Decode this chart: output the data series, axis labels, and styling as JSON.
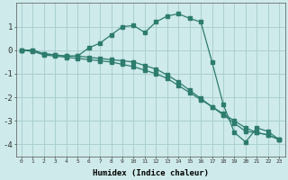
{
  "xlabel": "Humidex (Indice chaleur)",
  "background_color": "#ceeaea",
  "grid_color": "#aacfcf",
  "line_color": "#2d7c6e",
  "xlim": [
    -0.5,
    23.5
  ],
  "ylim": [
    -4.5,
    2.0
  ],
  "yticks": [
    -4,
    -3,
    -2,
    -1,
    0,
    1
  ],
  "xticks": [
    0,
    1,
    2,
    3,
    4,
    5,
    6,
    7,
    8,
    9,
    10,
    11,
    12,
    13,
    14,
    15,
    16,
    17,
    18,
    19,
    20,
    21,
    22,
    23
  ],
  "line1_x": [
    0,
    1,
    2,
    3,
    4,
    5,
    6,
    7,
    8,
    9,
    10,
    11,
    12,
    13,
    14,
    15,
    16,
    17,
    18,
    19,
    20,
    21,
    22,
    23
  ],
  "line1_y": [
    0.0,
    -0.05,
    -0.2,
    -0.25,
    -0.3,
    -0.35,
    -0.4,
    -0.45,
    -0.5,
    -0.6,
    -0.7,
    -0.85,
    -1.0,
    -1.2,
    -1.5,
    -1.8,
    -2.1,
    -2.4,
    -2.7,
    -3.0,
    -3.3,
    -3.5,
    -3.6,
    -3.8
  ],
  "line2_x": [
    0,
    1,
    2,
    3,
    4,
    5,
    6,
    7,
    8,
    9,
    10,
    11,
    12,
    13,
    14,
    15,
    16,
    17,
    18,
    19,
    20,
    21,
    22,
    23
  ],
  "line2_y": [
    0.0,
    0.0,
    -0.15,
    -0.2,
    -0.25,
    -0.25,
    0.1,
    0.3,
    0.65,
    1.0,
    1.05,
    0.75,
    1.2,
    1.45,
    1.55,
    1.35,
    1.2,
    -0.5,
    -2.3,
    -3.5,
    -3.9,
    -3.3,
    -3.45,
    -3.8
  ],
  "line3_x": [
    0,
    1,
    2,
    3,
    4,
    5,
    6,
    7,
    8,
    9,
    10,
    11,
    12,
    13,
    14,
    15,
    16,
    17,
    18,
    19,
    20,
    21,
    22,
    23
  ],
  "line3_y": [
    0.0,
    0.0,
    -0.15,
    -0.2,
    -0.25,
    -0.25,
    -0.3,
    -0.35,
    -0.4,
    -0.45,
    -0.5,
    -0.65,
    -0.8,
    -1.05,
    -1.35,
    -1.7,
    -2.05,
    -2.4,
    -2.75,
    -3.1,
    -3.45,
    -3.5,
    -3.6,
    -3.8
  ]
}
